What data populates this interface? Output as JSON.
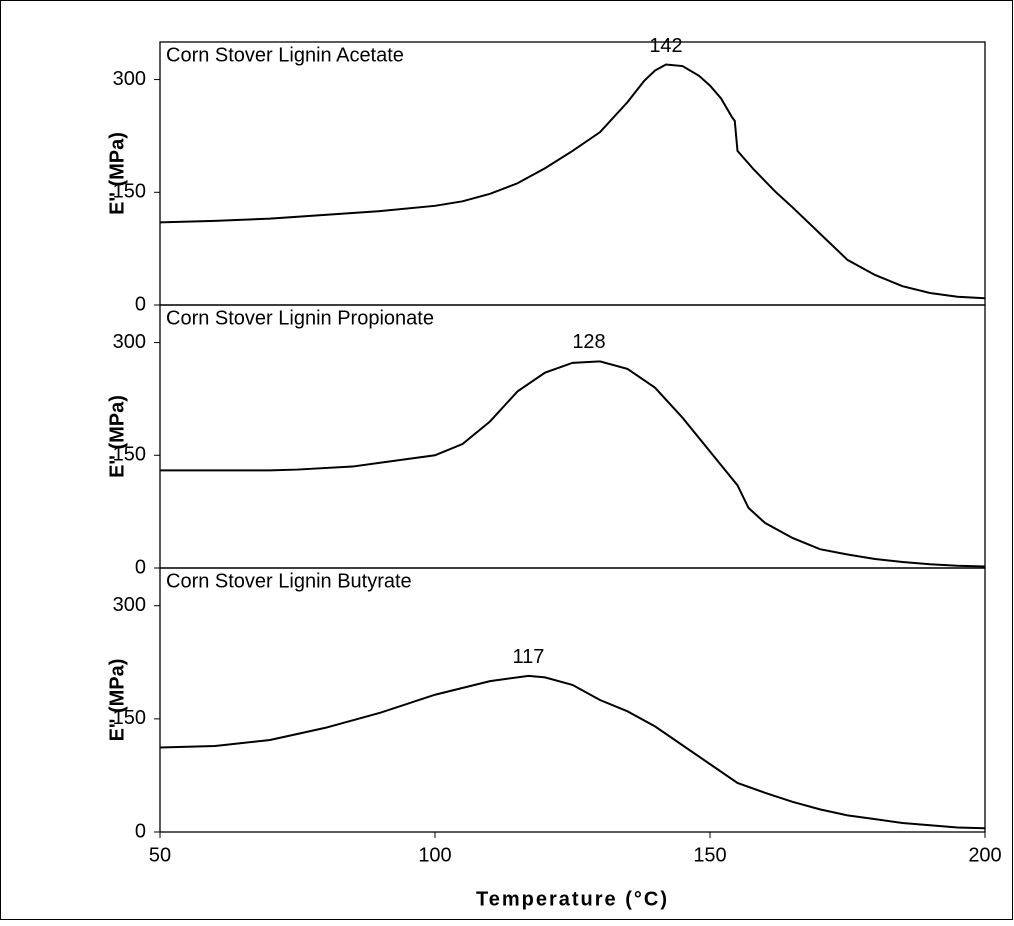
{
  "chart_data": [
    {
      "type": "line",
      "title": "Corn Stover Lignin Acetate",
      "y_label": "E'' (MPa)",
      "color": "#000000",
      "xlim": [
        50,
        200
      ],
      "ylim": [
        0,
        350
      ],
      "yticks": [
        0,
        150,
        300
      ],
      "x": [
        50,
        60,
        70,
        80,
        90,
        100,
        105,
        110,
        115,
        120,
        125,
        130,
        135,
        138,
        140,
        142,
        145,
        148,
        150,
        152,
        154,
        154.5,
        155,
        158,
        160,
        162,
        165,
        170,
        175,
        180,
        185,
        190,
        195,
        200
      ],
      "values": [
        110,
        112,
        115,
        120,
        125,
        132,
        138,
        148,
        162,
        182,
        205,
        230,
        270,
        298,
        312,
        320,
        318,
        305,
        292,
        275,
        250,
        245,
        205,
        180,
        165,
        150,
        130,
        95,
        60,
        40,
        25,
        16,
        11,
        9
      ],
      "annotations": [
        {
          "text": "142",
          "x": 142,
          "y": 320
        }
      ]
    },
    {
      "type": "line",
      "title": "Corn Stover Lignin Propionate",
      "y_label": "E'' (MPa)",
      "color": "#000000",
      "xlim": [
        50,
        200
      ],
      "ylim": [
        0,
        350
      ],
      "yticks": [
        0,
        150,
        300
      ],
      "x": [
        50,
        60,
        70,
        75,
        85,
        90,
        100,
        105,
        110,
        115,
        120,
        125,
        130,
        135,
        140,
        145,
        150,
        155,
        157,
        160,
        165,
        170,
        175,
        180,
        185,
        190,
        195,
        200
      ],
      "values": [
        130,
        130,
        130,
        131,
        135,
        140,
        150,
        165,
        195,
        235,
        260,
        273,
        275,
        265,
        240,
        200,
        155,
        110,
        80,
        60,
        40,
        25,
        18,
        12,
        8,
        5,
        3,
        2
      ],
      "annotations": [
        {
          "text": "128",
          "x": 128,
          "y": 276
        }
      ]
    },
    {
      "type": "line",
      "title": "Corn Stover Lignin Butyrate",
      "y_label": "E'' (MPa)",
      "x_label": "Temperature (°C)",
      "color": "#000000",
      "xlim": [
        50,
        200
      ],
      "xticks": [
        50,
        100,
        150,
        200
      ],
      "ylim": [
        0,
        350
      ],
      "yticks": [
        0,
        150,
        300
      ],
      "x": [
        50,
        60,
        70,
        80,
        90,
        100,
        110,
        117,
        120,
        125,
        130,
        135,
        140,
        145,
        150,
        155,
        160,
        165,
        170,
        175,
        180,
        185,
        190,
        195,
        200
      ],
      "values": [
        112,
        114,
        122,
        138,
        158,
        182,
        200,
        207,
        205,
        195,
        175,
        160,
        140,
        115,
        90,
        65,
        52,
        40,
        30,
        22,
        17,
        12,
        9,
        6,
        5
      ],
      "annotations": [
        {
          "text": "117",
          "x": 117,
          "y": 207
        }
      ]
    }
  ]
}
